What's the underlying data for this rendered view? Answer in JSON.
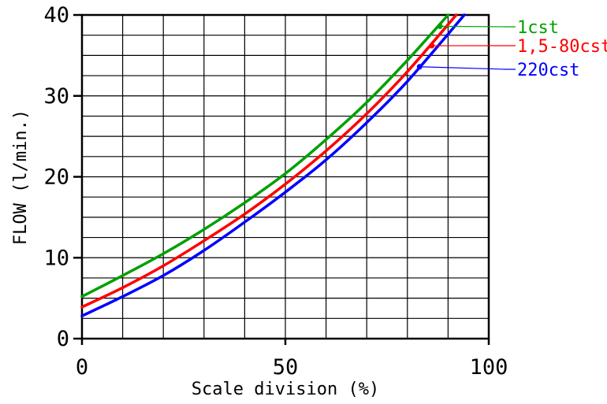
{
  "chart_data": {
    "type": "line",
    "title": "",
    "xlabel": "Scale division (%)",
    "ylabel": "FLOW (l/min.)",
    "xlim": [
      0,
      100
    ],
    "ylim": [
      0,
      40
    ],
    "x_ticks": [
      {
        "value": 0,
        "label": "0"
      },
      {
        "value": 50,
        "label": "50"
      },
      {
        "value": 100,
        "label": "100"
      }
    ],
    "y_ticks": [
      {
        "value": 0,
        "label": "0"
      },
      {
        "value": 10,
        "label": "10"
      },
      {
        "value": 20,
        "label": "20"
      },
      {
        "value": 30,
        "label": "30"
      },
      {
        "value": 40,
        "label": "40"
      }
    ],
    "grid": true,
    "grid_step": {
      "x": 10,
      "y": 2.5
    },
    "legend_placement": "right of plot, labels connected to curves by leader lines",
    "series": [
      {
        "name": "1cst",
        "color": "#00a000",
        "x": [
          0,
          10,
          20,
          30,
          40,
          50,
          60,
          70,
          80,
          90
        ],
        "y": [
          5.2,
          7.8,
          10.5,
          13.5,
          16.8,
          20.4,
          24.6,
          29.2,
          34.4,
          40.0
        ],
        "marker": {
          "x": 88,
          "y": 38.6
        }
      },
      {
        "name": "1,5-80cst",
        "color": "#ff0000",
        "x": [
          0,
          10,
          20,
          30,
          40,
          50,
          60,
          70,
          80,
          92
        ],
        "y": [
          3.9,
          6.3,
          9.0,
          12.1,
          15.4,
          19.1,
          23.2,
          27.8,
          33.0,
          40.0
        ],
        "marker": {
          "x": 86,
          "y": 36.2
        }
      },
      {
        "name": "220cst",
        "color": "#0000ff",
        "x": [
          0,
          10,
          20,
          30,
          40,
          50,
          60,
          70,
          80,
          94
        ],
        "y": [
          2.8,
          5.2,
          7.8,
          10.9,
          14.4,
          18.1,
          22.1,
          26.7,
          31.8,
          40.0
        ],
        "marker": {
          "x": 83,
          "y": 33.6
        }
      }
    ]
  }
}
